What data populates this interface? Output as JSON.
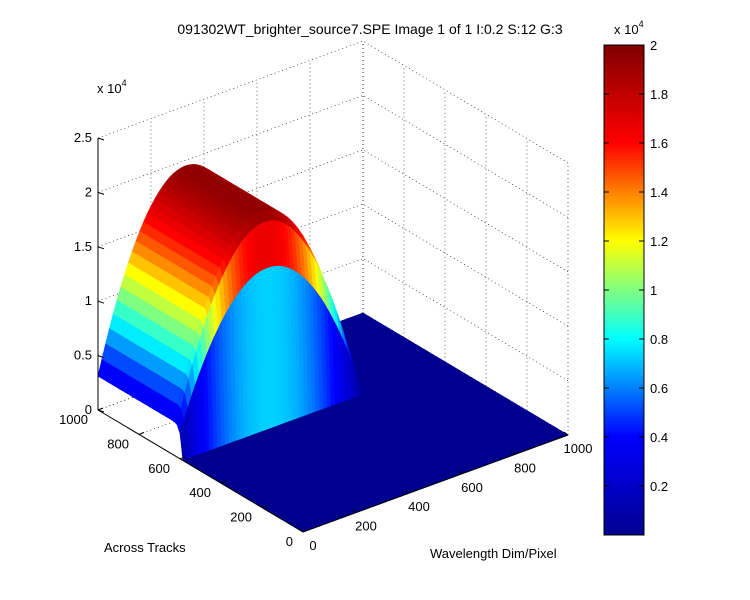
{
  "chart_data": {
    "type": "surface",
    "title": "091302WT_brighter_source7.SPE  Image 1 of 1  I:0.2  S:12  G:3",
    "xlabel": "Wavelength Dim/Pixel",
    "ylabel": "Across Tracks",
    "zlabel": "",
    "xlim": [
      0,
      1000
    ],
    "ylim": [
      0,
      1000
    ],
    "zlim": [
      0,
      25000
    ],
    "x_ticks": [
      "0",
      "200",
      "400",
      "600",
      "800",
      "1000"
    ],
    "y_ticks": [
      "0",
      "200",
      "400",
      "600",
      "800",
      "1000"
    ],
    "z_ticks": [
      "0",
      "0.5",
      "1",
      "1.5",
      "2",
      "2.5"
    ],
    "z_multiplier": "x 10",
    "z_multiplier_exp": "4",
    "grid": true,
    "colormap": "jet",
    "surface": {
      "peak_value": 19500,
      "peak_wavelength_pixel": 330,
      "wavelength_half_width": 360,
      "track_center": 820,
      "track_half_width": 230,
      "edge_falloff_wavelength": 250
    },
    "colorbar": {
      "min": 0,
      "max": 20000,
      "ticks": [
        "0.2",
        "0.4",
        "0.6",
        "0.8",
        "1",
        "1.2",
        "1.4",
        "1.6",
        "1.8",
        "2"
      ],
      "multiplier": "x 10",
      "multiplier_exp": "4",
      "colors": [
        "#00008f",
        "#0000ff",
        "#00ffff",
        "#ffff00",
        "#ff0000",
        "#800000"
      ]
    }
  }
}
